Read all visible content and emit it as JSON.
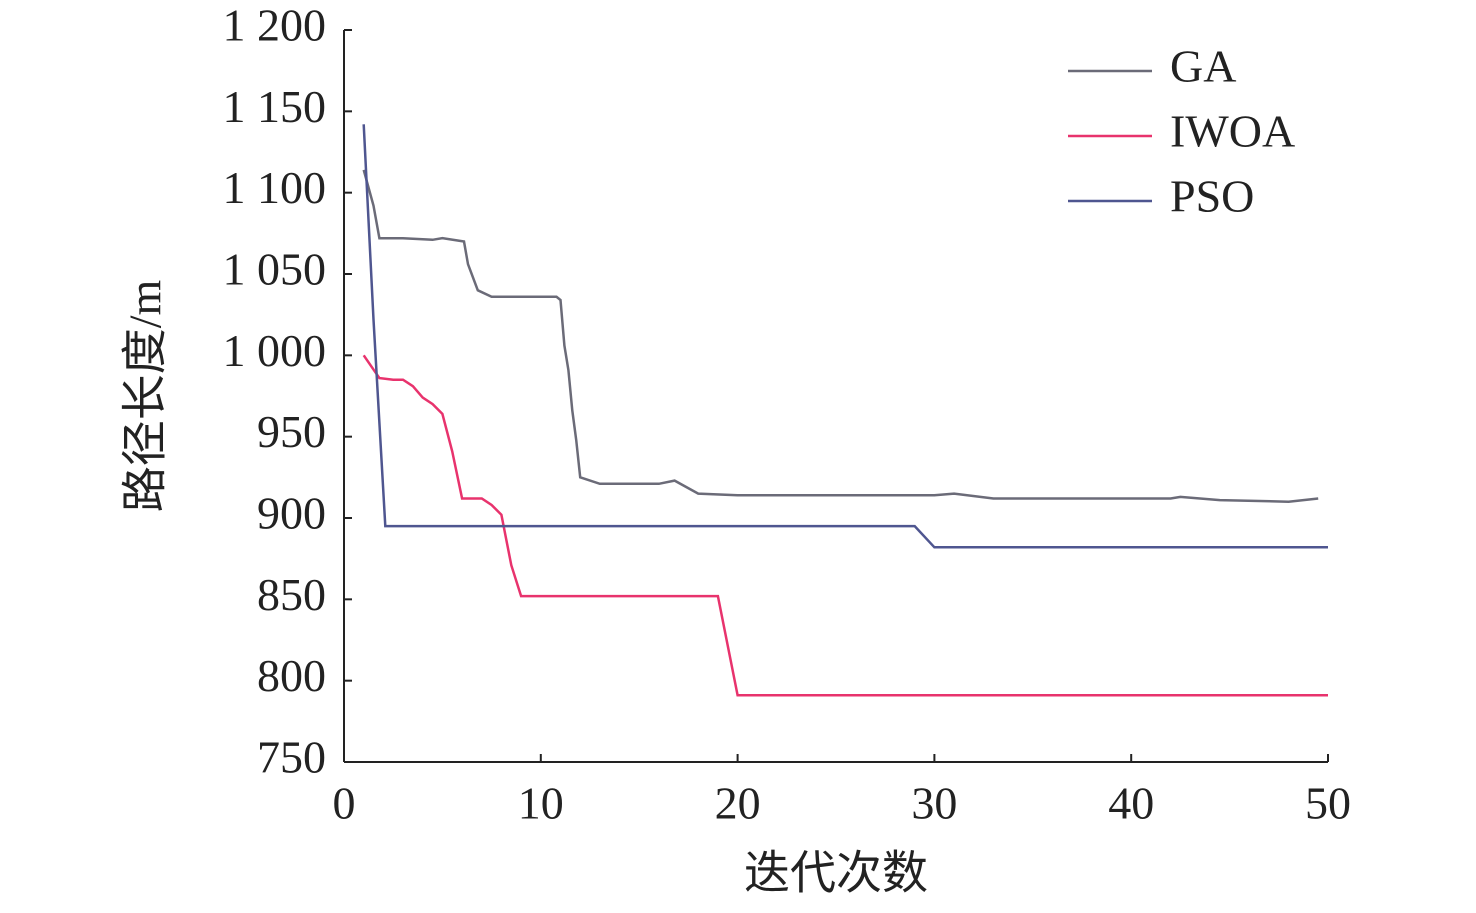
{
  "chart_data": {
    "type": "line",
    "xlabel": "迭代次数",
    "ylabel": "路径长度/m",
    "xlim": [
      0,
      50
    ],
    "xticks": [
      0,
      10,
      20,
      30,
      40,
      50
    ],
    "ylim": [
      750,
      1200
    ],
    "yticks": [
      750,
      800,
      850,
      900,
      950,
      {
        "value": 1000,
        "label": "1 000"
      },
      {
        "value": 1050,
        "label": "1 050"
      },
      {
        "value": 1100,
        "label": "1 100"
      },
      {
        "value": 1150,
        "label": "1 150"
      },
      {
        "value": 1200,
        "label": "1 200"
      }
    ],
    "series": [
      {
        "name": "GA",
        "color": "#6b6b78",
        "x": [
          1,
          1.5,
          1.8,
          3,
          4.5,
          5,
          6.1,
          6.3,
          6.8,
          7.5,
          10.8,
          11,
          11.2,
          11.4,
          11.6,
          11.8,
          12,
          13,
          16,
          16.8,
          18,
          20,
          30,
          31,
          33,
          42,
          42.5,
          44.5,
          48,
          49.5
        ],
        "values": [
          1114,
          1092,
          1072,
          1072,
          1071,
          1072,
          1070,
          1056,
          1040,
          1036,
          1036,
          1034,
          1006,
          991,
          966,
          948,
          925,
          921,
          921,
          923,
          915,
          914,
          914,
          915,
          912,
          912,
          913,
          911,
          910,
          912
        ]
      },
      {
        "name": "IWOA",
        "color": "#e8336d",
        "x": [
          1,
          1.8,
          2.5,
          3,
          3.5,
          4,
          4.5,
          5,
          5.5,
          6,
          7,
          7.5,
          8,
          8.5,
          9,
          19,
          20,
          50
        ],
        "values": [
          1000,
          986,
          985,
          985,
          981,
          974,
          970,
          964,
          941,
          912,
          912,
          908,
          902,
          871,
          852,
          852,
          791,
          791
        ]
      },
      {
        "name": "PSO",
        "color": "#4f5690",
        "x": [
          1,
          1.5,
          2.1,
          10,
          20,
          29,
          30,
          50
        ],
        "values": [
          1142,
          1022,
          895,
          895,
          895,
          895,
          882,
          882
        ]
      }
    ]
  }
}
